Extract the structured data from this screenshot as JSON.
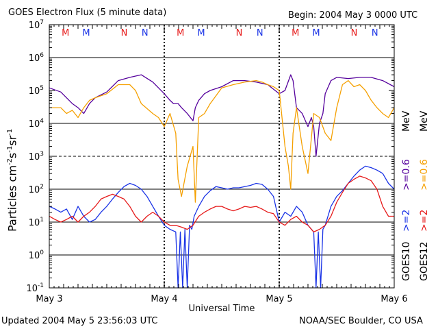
{
  "header": {
    "title": "GOES Electron Flux (5 minute data)",
    "begin": "Begin: 2004 May 3 0000 UTC"
  },
  "footer": {
    "updated": "Updated 2004 May  5 23:56:03 UTC",
    "source": "NOAA/SEC Boulder, CO USA"
  },
  "colors": {
    "goes10_2mev": "#1a33e6",
    "goes10_06mev": "#55009c",
    "goes12_2mev": "#e61a1a",
    "goes12_06mev": "#f5a000",
    "marker_m": "#e61a1a",
    "marker_n": "#1a33e6"
  },
  "chart_data": {
    "type": "line",
    "title": "GOES Electron Flux (5 minute data)",
    "xlabel": "Universal Time",
    "ylabel": "Particles cm-2s-1sr-1",
    "ylabel_parts": {
      "base": "Particles cm",
      "sup1": "-2",
      "mid1": "s",
      "sup2": "-1",
      "mid2": "sr",
      "sup3": "-1"
    },
    "y_scale": "log",
    "ylim": [
      0.1,
      10000000
    ],
    "xlim_days": [
      0,
      3
    ],
    "x_ticks": [
      {
        "day": 0,
        "label": "May 3"
      },
      {
        "day": 1,
        "label": "May 4"
      },
      {
        "day": 2,
        "label": "May 5"
      },
      {
        "day": 3,
        "label": "May 6"
      }
    ],
    "y_ticks": [
      {
        "value": 0.1,
        "base": "10",
        "exp": "-1"
      },
      {
        "value": 1,
        "base": "10",
        "exp": "0"
      },
      {
        "value": 10,
        "base": "10",
        "exp": "1"
      },
      {
        "value": 100,
        "base": "10",
        "exp": "2"
      },
      {
        "value": 1000,
        "base": "10",
        "exp": "3"
      },
      {
        "value": 10000,
        "base": "10",
        "exp": "4"
      },
      {
        "value": 100000,
        "base": "10",
        "exp": "5"
      },
      {
        "value": 1000000,
        "base": "10",
        "exp": "6"
      },
      {
        "value": 10000000,
        "base": "10",
        "exp": "7"
      }
    ],
    "solid_gridlines": [
      1,
      10,
      100,
      10000,
      1000000
    ],
    "dashed_gridlines": [
      1000
    ],
    "markers": [
      {
        "label": "M",
        "day": 0.32,
        "color_key": "marker_m"
      },
      {
        "label": "M",
        "day": 0.5,
        "color_key": "marker_n"
      },
      {
        "label": "N",
        "day": 0.83,
        "color_key": "marker_m"
      },
      {
        "label": "N",
        "day": 1.01,
        "color_key": "marker_n"
      },
      {
        "label": "M",
        "day": 1.32,
        "color_key": "marker_m"
      },
      {
        "label": "M",
        "day": 1.5,
        "color_key": "marker_n"
      },
      {
        "label": "N",
        "day": 1.83,
        "color_key": "marker_m"
      },
      {
        "label": "N",
        "day": 2.01,
        "color_key": "marker_n"
      },
      {
        "label": "M",
        "day": 2.32,
        "color_key": "marker_m"
      },
      {
        "label": "M",
        "day": 2.5,
        "color_key": "marker_n"
      },
      {
        "label": "N",
        "day": 2.83,
        "color_key": "marker_m"
      },
      {
        "label": "N",
        "day": 3.01,
        "color_key": "marker_n"
      }
    ],
    "right_legend": [
      {
        "text": ">=2",
        "color_key": "goes10_2mev"
      },
      {
        "text": ">=0.6",
        "color_key": "goes10_06mev"
      },
      {
        "text": ">=2",
        "color_key": "goes12_2mev"
      },
      {
        "text": ">=0.6",
        "color_key": "goes12_06mev"
      }
    ],
    "satellite_labels": [
      "GOES10",
      "GOES12"
    ],
    "unit_label": "MeV",
    "series": [
      {
        "name": "GOES10 >=2 MeV",
        "color_key": "goes10_2mev",
        "x": [
          0,
          0.05,
          0.1,
          0.15,
          0.2,
          0.25,
          0.3,
          0.35,
          0.4,
          0.45,
          0.5,
          0.55,
          0.6,
          0.65,
          0.7,
          0.75,
          0.8,
          0.85,
          0.9,
          0.95,
          1.0,
          1.05,
          1.1,
          1.12,
          1.14,
          1.16,
          1.18,
          1.2,
          1.22,
          1.24,
          1.26,
          1.3,
          1.35,
          1.4,
          1.45,
          1.5,
          1.55,
          1.6,
          1.65,
          1.7,
          1.75,
          1.8,
          1.85,
          1.9,
          1.95,
          2.0,
          2.05,
          2.1,
          2.15,
          2.2,
          2.25,
          2.3,
          2.32,
          2.34,
          2.36,
          2.38,
          2.4,
          2.45,
          2.5,
          2.55,
          2.6,
          2.65,
          2.7,
          2.75,
          2.8,
          2.85,
          2.9,
          2.95,
          3.0
        ],
        "y": [
          30,
          25,
          20,
          25,
          12,
          30,
          15,
          10,
          12,
          20,
          30,
          50,
          80,
          120,
          150,
          130,
          100,
          60,
          30,
          15,
          8,
          6,
          5,
          0.1,
          5,
          0.1,
          6,
          0.1,
          8,
          6,
          15,
          30,
          60,
          90,
          120,
          110,
          100,
          110,
          110,
          120,
          130,
          150,
          140,
          100,
          60,
          10,
          20,
          15,
          30,
          20,
          8,
          5,
          0.1,
          5,
          0.1,
          6,
          8,
          30,
          60,
          90,
          150,
          250,
          380,
          500,
          450,
          380,
          300,
          150,
          100
        ]
      },
      {
        "name": "GOES10 >=0.6 MeV",
        "color_key": "goes10_06mev",
        "x": [
          0,
          0.1,
          0.2,
          0.25,
          0.3,
          0.35,
          0.4,
          0.5,
          0.6,
          0.7,
          0.8,
          0.9,
          0.95,
          1.0,
          1.05,
          1.08,
          1.12,
          1.15,
          1.2,
          1.25,
          1.27,
          1.3,
          1.35,
          1.4,
          1.5,
          1.6,
          1.7,
          1.8,
          1.9,
          2.0,
          2.05,
          2.1,
          2.12,
          2.15,
          2.2,
          2.25,
          2.28,
          2.3,
          2.32,
          2.35,
          2.38,
          2.4,
          2.45,
          2.5,
          2.6,
          2.7,
          2.8,
          2.9,
          3.0
        ],
        "y": [
          120000,
          90000,
          40000,
          30000,
          20000,
          40000,
          60000,
          90000,
          200000,
          250000,
          300000,
          180000,
          120000,
          80000,
          50000,
          40000,
          40000,
          30000,
          20000,
          12000,
          30000,
          50000,
          80000,
          100000,
          130000,
          200000,
          200000,
          180000,
          150000,
          80000,
          100000,
          300000,
          200000,
          30000,
          20000,
          8000,
          15000,
          8000,
          1000,
          10000,
          20000,
          80000,
          200000,
          250000,
          230000,
          250000,
          250000,
          200000,
          130000
        ]
      },
      {
        "name": "GOES12 >=2 MeV",
        "color_key": "goes12_2mev",
        "x": [
          0,
          0.05,
          0.1,
          0.15,
          0.2,
          0.25,
          0.3,
          0.35,
          0.4,
          0.45,
          0.5,
          0.55,
          0.6,
          0.65,
          0.7,
          0.75,
          0.8,
          0.85,
          0.9,
          0.95,
          1.0,
          1.05,
          1.1,
          1.15,
          1.2,
          1.25,
          1.3,
          1.35,
          1.4,
          1.45,
          1.5,
          1.55,
          1.6,
          1.65,
          1.7,
          1.75,
          1.8,
          1.85,
          1.9,
          1.95,
          2.0,
          2.05,
          2.1,
          2.15,
          2.2,
          2.25,
          2.3,
          2.35,
          2.4,
          2.45,
          2.5,
          2.55,
          2.6,
          2.65,
          2.7,
          2.75,
          2.8,
          2.85,
          2.9,
          2.95,
          3.0
        ],
        "y": [
          15,
          12,
          10,
          12,
          15,
          10,
          15,
          20,
          30,
          50,
          60,
          70,
          60,
          50,
          30,
          15,
          10,
          15,
          20,
          15,
          10,
          8,
          8,
          7,
          6,
          8,
          15,
          20,
          25,
          30,
          30,
          25,
          22,
          25,
          30,
          28,
          30,
          25,
          20,
          18,
          10,
          8,
          12,
          15,
          10,
          8,
          5,
          6,
          8,
          15,
          40,
          80,
          150,
          200,
          250,
          220,
          180,
          100,
          30,
          15,
          15
        ]
      },
      {
        "name": "GOES12 >=0.6 MeV",
        "color_key": "goes12_06mev",
        "x": [
          0,
          0.1,
          0.15,
          0.2,
          0.25,
          0.3,
          0.35,
          0.4,
          0.5,
          0.6,
          0.7,
          0.75,
          0.8,
          0.9,
          0.95,
          1.0,
          1.05,
          1.1,
          1.12,
          1.15,
          1.2,
          1.25,
          1.27,
          1.3,
          1.35,
          1.4,
          1.5,
          1.6,
          1.7,
          1.8,
          1.85,
          1.9,
          1.95,
          2.0,
          2.05,
          2.08,
          2.1,
          2.12,
          2.15,
          2.2,
          2.25,
          2.3,
          2.35,
          2.4,
          2.45,
          2.5,
          2.55,
          2.6,
          2.65,
          2.7,
          2.75,
          2.8,
          2.85,
          2.9,
          2.95,
          3.0
        ],
        "y": [
          30000,
          30000,
          20000,
          25000,
          15000,
          30000,
          50000,
          60000,
          80000,
          150000,
          150000,
          100000,
          40000,
          20000,
          15000,
          8000,
          20000,
          5000,
          200,
          60,
          500,
          2000,
          40,
          15000,
          20000,
          40000,
          120000,
          150000,
          180000,
          200000,
          180000,
          150000,
          130000,
          100000,
          2000,
          500,
          100,
          5000,
          30000,
          2000,
          300,
          20000,
          15000,
          5000,
          3000,
          30000,
          150000,
          200000,
          130000,
          150000,
          100000,
          50000,
          30000,
          20000,
          15000,
          30000
        ]
      }
    ]
  }
}
